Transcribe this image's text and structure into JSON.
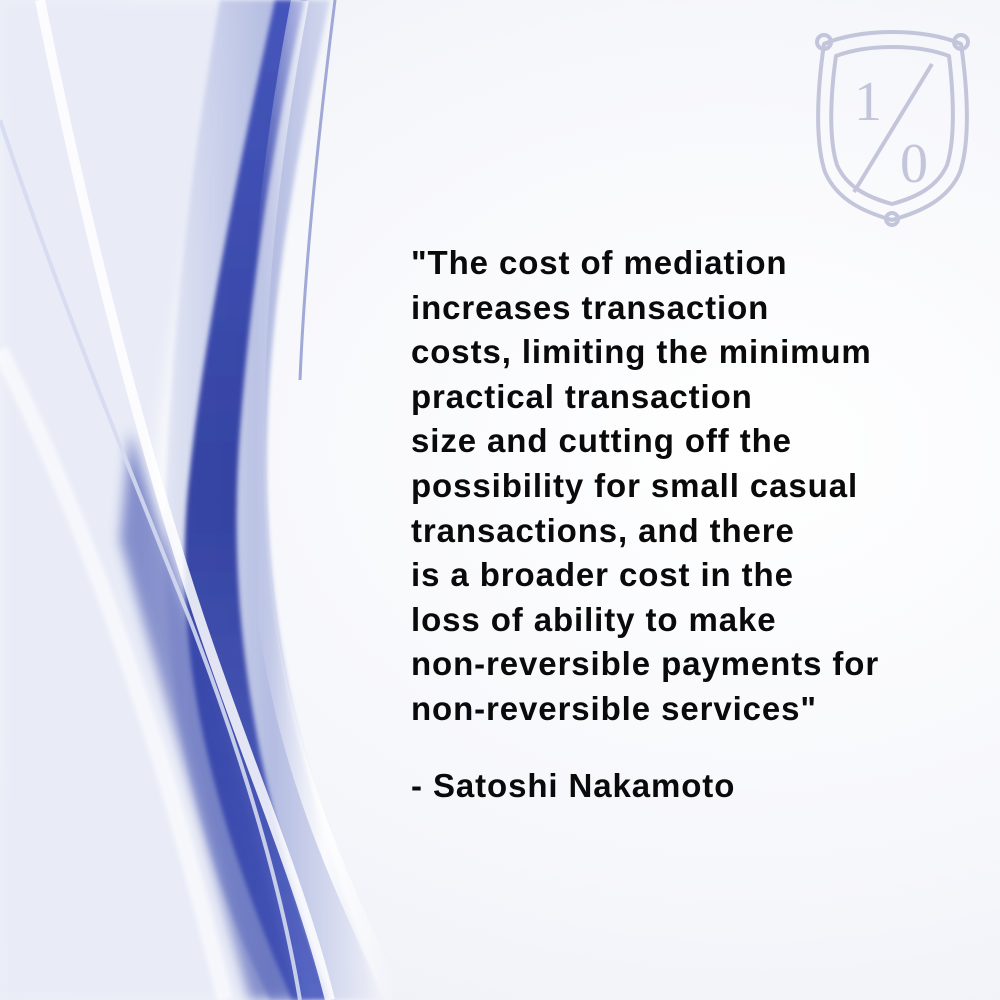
{
  "logo": {
    "numerator": "1",
    "denominator": "0"
  },
  "quote": {
    "lines": [
      "\"The cost of mediation",
      "increases transaction",
      "costs, limiting the minimum",
      "practical transaction",
      "size and cutting off the",
      "possibility for small casual",
      "transactions, and there",
      "is a broader cost in the",
      "loss of ability to make",
      "non-reversible payments for",
      "non-reversible services\""
    ],
    "attribution": "- Satoshi Nakamoto"
  },
  "colors": {
    "text": "#0a0a0a",
    "swoosh_dark": "#2b3a9e",
    "swoosh_mid": "#7b88c8",
    "swoosh_light": "#c9cfe8",
    "emblem": "#c3c5db"
  }
}
